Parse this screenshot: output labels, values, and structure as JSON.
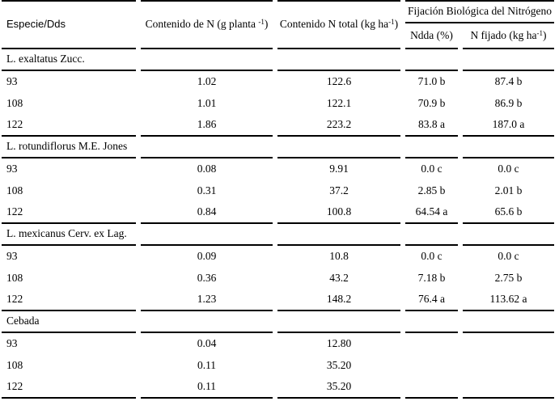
{
  "page": {
    "background_color": "#ffffff",
    "text_color": "#000000",
    "rule_color": "#000000"
  },
  "table": {
    "header": {
      "especie": "Especie/Dds",
      "contenido_planta": {
        "pre": "Contenido de N (g planta ",
        "sup": "-1",
        "post": ")"
      },
      "contenido_total": {
        "pre": "Contenido N total (kg ha",
        "sup": "-1",
        "post": ")"
      },
      "fijacion_group": "Fijación Biológica del Nitrógeno",
      "ndda": "Ndda (%)",
      "n_fijado": {
        "pre": "N fijado (kg ha",
        "sup": "-1",
        "post": ")"
      }
    },
    "sections": [
      {
        "title": "L. exaltatus Zucc.",
        "rows": [
          {
            "dds": "93",
            "n_planta": "1.02",
            "n_total": "122.6",
            "ndda": "71.0 b",
            "n_fijado": "87.4 b"
          },
          {
            "dds": "108",
            "n_planta": "1.01",
            "n_total": "122.1",
            "ndda": "70.9 b",
            "n_fijado": "86.9 b"
          },
          {
            "dds": "122",
            "n_planta": "1.86",
            "n_total": "223.2",
            "ndda": "83.8 a",
            "n_fijado": "187.0 a"
          }
        ]
      },
      {
        "title": "L. rotundiflorus M.E. Jones",
        "rows": [
          {
            "dds": "93",
            "n_planta": "0.08",
            "n_total": "9.91",
            "ndda": "0.0 c",
            "n_fijado": "0.0 c"
          },
          {
            "dds": "108",
            "n_planta": "0.31",
            "n_total": "37.2",
            "ndda": "2.85 b",
            "n_fijado": "2.01 b"
          },
          {
            "dds": "122",
            "n_planta": "0.84",
            "n_total": "100.8",
            "ndda": "64.54 a",
            "n_fijado": "65.6 b"
          }
        ]
      },
      {
        "title": "L. mexicanus Cerv. ex Lag.",
        "rows": [
          {
            "dds": "93",
            "n_planta": "0.09",
            "n_total": "10.8",
            "ndda": "0.0 c",
            "n_fijado": "0.0 c"
          },
          {
            "dds": "108",
            "n_planta": "0.36",
            "n_total": "43.2",
            "ndda": "7.18 b",
            "n_fijado": "2.75 b"
          },
          {
            "dds": "122",
            "n_planta": "1.23",
            "n_total": "148.2",
            "ndda": "76.4 a",
            "n_fijado": "113.62 a"
          }
        ]
      },
      {
        "title": "Cebada",
        "rows": [
          {
            "dds": "93",
            "n_planta": "0.04",
            "n_total": "12.80",
            "ndda": "",
            "n_fijado": ""
          },
          {
            "dds": "108",
            "n_planta": "0.11",
            "n_total": "35.20",
            "ndda": "",
            "n_fijado": ""
          },
          {
            "dds": "122",
            "n_planta": "0.11",
            "n_total": "35.20",
            "ndda": "",
            "n_fijado": ""
          }
        ]
      }
    ]
  }
}
